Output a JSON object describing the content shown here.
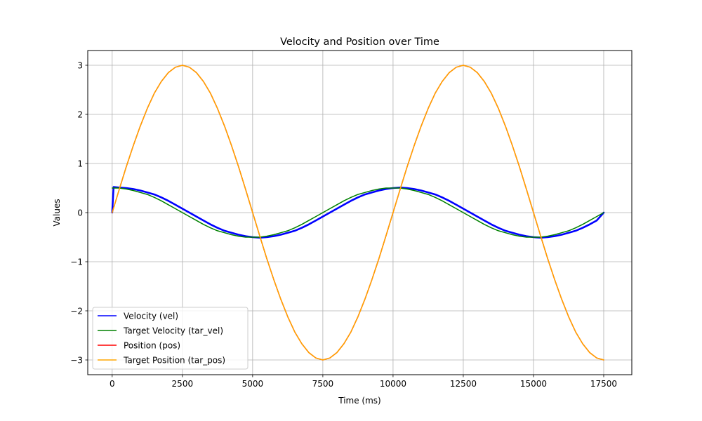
{
  "chart_data": {
    "type": "line",
    "title": "Velocity and Position over Time",
    "xlabel": "Time (ms)",
    "ylabel": "Values",
    "xlim": [
      -870,
      18500
    ],
    "ylim": [
      -3.3,
      3.3
    ],
    "xticks": [
      0,
      2500,
      5000,
      7500,
      10000,
      12500,
      15000,
      17500
    ],
    "xtick_labels": [
      "0",
      "2500",
      "5000",
      "7500",
      "10000",
      "12500",
      "15000",
      "17500"
    ],
    "yticks": [
      -3,
      -2,
      -1,
      0,
      1,
      2,
      3
    ],
    "ytick_labels": [
      "−3",
      "−2",
      "−1",
      "0",
      "1",
      "2",
      "3"
    ],
    "grid": true,
    "legend_position": "lower-left",
    "x": [
      0,
      250,
      500,
      750,
      1000,
      1250,
      1500,
      1750,
      2000,
      2250,
      2500,
      2750,
      3000,
      3250,
      3500,
      3750,
      4000,
      4250,
      4500,
      4750,
      5000,
      5250,
      5500,
      5750,
      6000,
      6250,
      6500,
      6750,
      7000,
      7250,
      7500,
      7750,
      8000,
      8250,
      8500,
      8750,
      9000,
      9250,
      9500,
      9750,
      10000,
      10250,
      10500,
      10750,
      11000,
      11250,
      11500,
      11750,
      12000,
      12250,
      12500,
      12750,
      13000,
      13250,
      13500,
      13750,
      14000,
      14250,
      14500,
      14750,
      15000,
      15250,
      15500,
      15750,
      16000,
      16250,
      16500,
      16750,
      17000,
      17250,
      17500
    ],
    "series": [
      {
        "name": "Velocity (vel)",
        "color": "#0000ff",
        "x": [
          0,
          50,
          250,
          500,
          750,
          1000,
          1250,
          1500,
          1750,
          2000,
          2250,
          2500,
          2750,
          3000,
          3250,
          3500,
          3750,
          4000,
          4250,
          4500,
          4750,
          5000,
          5250,
          5500,
          5750,
          6000,
          6250,
          6500,
          6750,
          7000,
          7250,
          7500,
          7750,
          8000,
          8250,
          8500,
          8750,
          9000,
          9250,
          9500,
          9750,
          10000,
          10250,
          10500,
          10750,
          11000,
          11250,
          11500,
          11750,
          12000,
          12250,
          12500,
          12750,
          13000,
          13250,
          13500,
          13750,
          14000,
          14250,
          14500,
          14750,
          15000,
          15250,
          15500,
          15750,
          16000,
          16250,
          16500,
          16750,
          17000,
          17250,
          17500
        ],
        "values": [
          0.0,
          0.52,
          0.51,
          0.5,
          0.48,
          0.45,
          0.41,
          0.37,
          0.31,
          0.24,
          0.16,
          0.08,
          0.0,
          -0.08,
          -0.16,
          -0.24,
          -0.31,
          -0.37,
          -0.41,
          -0.45,
          -0.48,
          -0.5,
          -0.51,
          -0.5,
          -0.48,
          -0.45,
          -0.41,
          -0.37,
          -0.31,
          -0.24,
          -0.16,
          -0.08,
          0.0,
          0.08,
          0.16,
          0.24,
          0.31,
          0.37,
          0.41,
          0.45,
          0.48,
          0.5,
          0.51,
          0.5,
          0.48,
          0.45,
          0.41,
          0.37,
          0.31,
          0.24,
          0.16,
          0.08,
          0.0,
          -0.08,
          -0.16,
          -0.24,
          -0.31,
          -0.37,
          -0.41,
          -0.45,
          -0.48,
          -0.5,
          -0.51,
          -0.5,
          -0.48,
          -0.45,
          -0.41,
          -0.37,
          -0.31,
          -0.24,
          -0.16,
          0.0
        ]
      },
      {
        "name": "Target Velocity (tar_vel)",
        "color": "#008000",
        "values": [
          0.5,
          0.5,
          0.48,
          0.45,
          0.41,
          0.37,
          0.31,
          0.24,
          0.16,
          0.08,
          0.0,
          -0.08,
          -0.16,
          -0.24,
          -0.31,
          -0.37,
          -0.41,
          -0.45,
          -0.48,
          -0.5,
          -0.5,
          -0.5,
          -0.48,
          -0.45,
          -0.41,
          -0.37,
          -0.31,
          -0.24,
          -0.16,
          -0.08,
          0.0,
          0.08,
          0.16,
          0.24,
          0.31,
          0.37,
          0.41,
          0.45,
          0.48,
          0.5,
          0.5,
          0.5,
          0.48,
          0.45,
          0.41,
          0.37,
          0.31,
          0.24,
          0.16,
          0.08,
          0.0,
          -0.08,
          -0.16,
          -0.24,
          -0.31,
          -0.37,
          -0.41,
          -0.45,
          -0.48,
          -0.5,
          -0.5,
          -0.5,
          -0.48,
          -0.45,
          -0.41,
          -0.37,
          -0.31,
          -0.24,
          -0.16,
          -0.08,
          0.0
        ]
      },
      {
        "name": "Position (pos)",
        "color": "#ff0000",
        "values": [
          0.0,
          0.47,
          0.93,
          1.36,
          1.76,
          2.12,
          2.43,
          2.67,
          2.85,
          2.96,
          3.0,
          2.96,
          2.85,
          2.67,
          2.43,
          2.12,
          1.76,
          1.36,
          0.93,
          0.47,
          0.0,
          -0.47,
          -0.93,
          -1.36,
          -1.76,
          -2.12,
          -2.43,
          -2.67,
          -2.85,
          -2.96,
          -3.0,
          -2.96,
          -2.85,
          -2.67,
          -2.43,
          -2.12,
          -1.76,
          -1.36,
          -0.93,
          -0.47,
          0.0,
          0.47,
          0.93,
          1.36,
          1.76,
          2.12,
          2.43,
          2.67,
          2.85,
          2.96,
          3.0,
          2.96,
          2.85,
          2.67,
          2.43,
          2.12,
          1.76,
          1.36,
          0.93,
          0.47,
          0.0,
          -0.47,
          -0.93,
          -1.36,
          -1.76,
          -2.12,
          -2.43,
          -2.67,
          -2.85,
          -2.96,
          -3.0
        ]
      },
      {
        "name": "Target Position (tar_pos)",
        "color": "#ffa500",
        "values": [
          0.0,
          0.47,
          0.93,
          1.36,
          1.76,
          2.12,
          2.43,
          2.67,
          2.85,
          2.96,
          3.0,
          2.96,
          2.85,
          2.67,
          2.43,
          2.12,
          1.76,
          1.36,
          0.93,
          0.47,
          0.0,
          -0.47,
          -0.93,
          -1.36,
          -1.76,
          -2.12,
          -2.43,
          -2.67,
          -2.85,
          -2.96,
          -3.0,
          -2.96,
          -2.85,
          -2.67,
          -2.43,
          -2.12,
          -1.76,
          -1.36,
          -0.93,
          -0.47,
          0.0,
          0.47,
          0.93,
          1.36,
          1.76,
          2.12,
          2.43,
          2.67,
          2.85,
          2.96,
          3.0,
          2.96,
          2.85,
          2.67,
          2.43,
          2.12,
          1.76,
          1.36,
          0.93,
          0.47,
          0.0,
          -0.47,
          -0.93,
          -1.36,
          -1.76,
          -2.12,
          -2.43,
          -2.67,
          -2.85,
          -2.96,
          -3.0
        ]
      }
    ]
  }
}
